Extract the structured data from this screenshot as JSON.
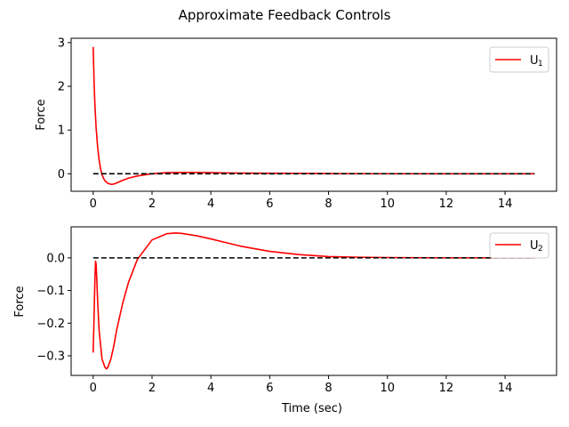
{
  "suptitle": "Approximate Feedback Controls",
  "colors": {
    "series": "#ff0000",
    "reference": "#000000"
  },
  "chart_data": [
    {
      "type": "line",
      "ylabel": "Force",
      "xlabel": "",
      "xlim": [
        -0.75,
        15.75
      ],
      "ylim": [
        -0.4,
        3.1
      ],
      "xticks": [
        0,
        2,
        4,
        6,
        8,
        10,
        12,
        14
      ],
      "xtick_labels": [
        "0",
        "2",
        "4",
        "6",
        "8",
        "10",
        "12",
        "14"
      ],
      "yticks": [
        0,
        1,
        2,
        3
      ],
      "ytick_labels": [
        "0",
        "1",
        "2",
        "3"
      ],
      "legend": {
        "label": "U",
        "subscript": "1",
        "placement": "upper right"
      },
      "grid": false,
      "series": [
        {
          "name": "U1",
          "style": "solid",
          "x": [
            0,
            0.03,
            0.06,
            0.1,
            0.15,
            0.2,
            0.25,
            0.3,
            0.35,
            0.4,
            0.5,
            0.6,
            0.7,
            0.8,
            1.0,
            1.2,
            1.5,
            2.0,
            2.5,
            3.0,
            3.5,
            4.0,
            5.0,
            6.0,
            8.0,
            10.0,
            12.0,
            15.0
          ],
          "y": [
            2.9,
            2.1,
            1.55,
            1.05,
            0.62,
            0.32,
            0.12,
            -0.02,
            -0.1,
            -0.16,
            -0.22,
            -0.24,
            -0.235,
            -0.21,
            -0.15,
            -0.1,
            -0.05,
            0.0,
            0.025,
            0.03,
            0.03,
            0.025,
            0.015,
            0.01,
            0.005,
            0.002,
            0.001,
            0.0
          ]
        },
        {
          "name": "reference",
          "style": "dashed",
          "x": [
            0,
            15
          ],
          "y": [
            0,
            0
          ]
        }
      ]
    },
    {
      "type": "line",
      "ylabel": "Force",
      "xlabel": "Time (sec)",
      "xlim": [
        -0.75,
        15.75
      ],
      "ylim": [
        -0.36,
        0.095
      ],
      "xticks": [
        0,
        2,
        4,
        6,
        8,
        10,
        12,
        14
      ],
      "xtick_labels": [
        "0",
        "2",
        "4",
        "6",
        "8",
        "10",
        "12",
        "14"
      ],
      "yticks": [
        -0.3,
        -0.2,
        -0.1,
        0.0
      ],
      "ytick_labels": [
        "−0.3",
        "−0.2",
        "−0.1",
        "0.0"
      ],
      "legend": {
        "label": "U",
        "subscript": "2",
        "placement": "upper right"
      },
      "grid": false,
      "series": [
        {
          "name": "U2",
          "style": "solid",
          "x": [
            0,
            0.03,
            0.06,
            0.08,
            0.1,
            0.12,
            0.15,
            0.2,
            0.3,
            0.4,
            0.45,
            0.5,
            0.6,
            0.7,
            0.8,
            1.0,
            1.2,
            1.5,
            2.0,
            2.5,
            2.8,
            3.0,
            3.5,
            4.0,
            5.0,
            6.0,
            7.0,
            8.0,
            9.0,
            10.0,
            12.0,
            15.0
          ],
          "y": [
            -0.29,
            -0.18,
            -0.06,
            -0.01,
            -0.02,
            -0.06,
            -0.13,
            -0.22,
            -0.31,
            -0.335,
            -0.34,
            -0.335,
            -0.31,
            -0.27,
            -0.22,
            -0.14,
            -0.075,
            -0.005,
            0.055,
            0.074,
            0.076,
            0.075,
            0.068,
            0.058,
            0.036,
            0.02,
            0.01,
            0.004,
            0.002,
            0.001,
            0.0,
            0.0
          ]
        },
        {
          "name": "reference",
          "style": "dashed",
          "x": [
            0,
            15
          ],
          "y": [
            0,
            0
          ]
        }
      ]
    }
  ]
}
